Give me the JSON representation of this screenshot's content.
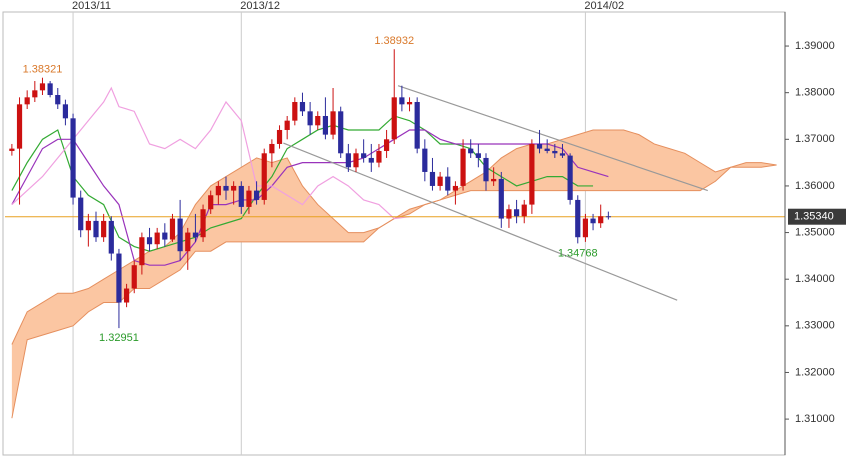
{
  "chart_data": {
    "type": "candlestick",
    "xlim": [
      -0.9,
      101.1
    ],
    "xticks": [
      {
        "value": 8,
        "label": "2013/11"
      },
      {
        "value": 30,
        "label": "2013/12"
      },
      {
        "value": 75,
        "label": "2014/02"
      }
    ],
    "ylim": [
      1.3023,
      1.3973
    ],
    "yticks": [
      {
        "value": 1.31,
        "label": "1.31000"
      },
      {
        "value": 1.32,
        "label": "1.32000"
      },
      {
        "value": 1.33,
        "label": "1.33000"
      },
      {
        "value": 1.34,
        "label": "1.34000"
      },
      {
        "value": 1.35,
        "label": "1.35000"
      },
      {
        "value": 1.36,
        "label": "1.36000"
      },
      {
        "value": 1.37,
        "label": "1.37000"
      },
      {
        "value": 1.38,
        "label": "1.38000"
      },
      {
        "value": 1.39,
        "label": "1.39000"
      }
    ],
    "grid": "x",
    "candles": {
      "up_color": "#cc1111",
      "down_color": "#2b2b9c",
      "x": [
        0,
        1,
        2,
        3,
        4,
        5,
        6,
        7,
        8,
        9,
        10,
        11,
        12,
        13,
        14,
        15,
        16,
        17,
        18,
        19,
        20,
        21,
        22,
        23,
        24,
        25,
        26,
        27,
        28,
        29,
        30,
        31,
        32,
        33,
        34,
        35,
        36,
        37,
        38,
        39,
        40,
        41,
        42,
        43,
        44,
        45,
        46,
        47,
        48,
        49,
        50,
        51,
        52,
        53,
        54,
        55,
        56,
        57,
        58,
        59,
        60,
        61,
        62,
        63,
        64,
        65,
        66,
        67,
        68,
        69,
        70,
        71,
        72,
        73,
        74,
        75,
        76,
        77,
        78
      ],
      "open": [
        1.3675,
        1.368,
        1.3775,
        1.379,
        1.3805,
        1.382,
        1.3795,
        1.3775,
        1.3745,
        1.3575,
        1.3505,
        1.3525,
        1.349,
        1.3525,
        1.3455,
        1.335,
        1.338,
        1.343,
        1.349,
        1.3475,
        1.35,
        1.3485,
        1.353,
        1.346,
        1.35,
        1.349,
        1.355,
        1.358,
        1.36,
        1.359,
        1.36,
        1.3555,
        1.359,
        1.357,
        1.367,
        1.369,
        1.372,
        1.374,
        1.378,
        1.376,
        1.373,
        1.375,
        1.371,
        1.376,
        1.367,
        1.364,
        1.367,
        1.366,
        1.365,
        1.3675,
        1.37,
        1.379,
        1.3775,
        1.378,
        1.368,
        1.363,
        1.36,
        1.362,
        1.359,
        1.36,
        1.368,
        1.367,
        1.366,
        1.361,
        1.3615,
        1.353,
        1.355,
        1.3535,
        1.356,
        1.369,
        1.368,
        1.3675,
        1.367,
        1.3665,
        1.357,
        1.349,
        1.353,
        1.352,
        1.3535
      ],
      "high": [
        1.369,
        1.379,
        1.3805,
        1.3825,
        1.38321,
        1.3825,
        1.381,
        1.3785,
        1.3755,
        1.359,
        1.354,
        1.3545,
        1.354,
        1.3535,
        1.3465,
        1.339,
        1.344,
        1.35,
        1.351,
        1.351,
        1.352,
        1.354,
        1.357,
        1.351,
        1.354,
        1.356,
        1.359,
        1.361,
        1.362,
        1.361,
        1.361,
        1.36,
        1.361,
        1.368,
        1.37,
        1.373,
        1.375,
        1.379,
        1.38,
        1.378,
        1.376,
        1.379,
        1.381,
        1.377,
        1.369,
        1.368,
        1.37,
        1.369,
        1.369,
        1.372,
        1.38932,
        1.3815,
        1.379,
        1.379,
        1.37,
        1.366,
        1.363,
        1.364,
        1.361,
        1.37,
        1.37,
        1.369,
        1.367,
        1.364,
        1.363,
        1.356,
        1.357,
        1.357,
        1.37,
        1.372,
        1.37,
        1.369,
        1.369,
        1.367,
        1.358,
        1.354,
        1.354,
        1.356,
        1.3545
      ],
      "low": [
        1.3665,
        1.356,
        1.3765,
        1.378,
        1.3795,
        1.379,
        1.3765,
        1.373,
        1.356,
        1.349,
        1.347,
        1.348,
        1.348,
        1.344,
        1.32951,
        1.334,
        1.337,
        1.341,
        1.346,
        1.3465,
        1.347,
        1.348,
        1.344,
        1.342,
        1.348,
        1.348,
        1.354,
        1.356,
        1.357,
        1.356,
        1.354,
        1.354,
        1.356,
        1.356,
        1.364,
        1.368,
        1.37,
        1.373,
        1.375,
        1.371,
        1.372,
        1.37,
        1.37,
        1.366,
        1.363,
        1.363,
        1.365,
        1.363,
        1.364,
        1.366,
        1.369,
        1.376,
        1.376,
        1.367,
        1.361,
        1.359,
        1.359,
        1.358,
        1.356,
        1.359,
        1.366,
        1.364,
        1.359,
        1.36,
        1.351,
        1.351,
        1.352,
        1.352,
        1.354,
        1.367,
        1.367,
        1.366,
        1.366,
        1.356,
        1.34768,
        1.348,
        1.3505,
        1.351,
        1.3528
      ],
      "close": [
        1.368,
        1.3775,
        1.379,
        1.3805,
        1.382,
        1.3795,
        1.3775,
        1.3745,
        1.3575,
        1.3505,
        1.3525,
        1.349,
        1.3525,
        1.3455,
        1.335,
        1.338,
        1.343,
        1.349,
        1.3475,
        1.35,
        1.3485,
        1.353,
        1.346,
        1.35,
        1.349,
        1.355,
        1.358,
        1.36,
        1.359,
        1.36,
        1.3555,
        1.359,
        1.357,
        1.367,
        1.369,
        1.372,
        1.374,
        1.378,
        1.376,
        1.373,
        1.375,
        1.371,
        1.376,
        1.367,
        1.364,
        1.367,
        1.366,
        1.365,
        1.3675,
        1.37,
        1.379,
        1.3775,
        1.378,
        1.368,
        1.363,
        1.36,
        1.362,
        1.359,
        1.36,
        1.368,
        1.367,
        1.366,
        1.361,
        1.3615,
        1.353,
        1.355,
        1.3535,
        1.356,
        1.369,
        1.368,
        1.3675,
        1.367,
        1.3665,
        1.357,
        1.349,
        1.353,
        1.352,
        1.3535,
        1.3534
      ]
    },
    "cloud": {
      "color": "#fbc6a2",
      "edge_color": "#e58f5e",
      "x": [
        0,
        2,
        4,
        6,
        8,
        10,
        12,
        14,
        16,
        18,
        20,
        22,
        24,
        26,
        28,
        30,
        32,
        34,
        36,
        38,
        40,
        42,
        44,
        46,
        48,
        50,
        52,
        54,
        56,
        58,
        60,
        62,
        64,
        66,
        68,
        70,
        72,
        74,
        76,
        78,
        80,
        82,
        84,
        86,
        88,
        90,
        92,
        94,
        96,
        98,
        100
      ],
      "span_a": [
        1.326,
        1.333,
        1.335,
        1.337,
        1.337,
        1.338,
        1.34,
        1.342,
        1.344,
        1.346,
        1.347,
        1.35,
        1.356,
        1.36,
        1.362,
        1.364,
        1.366,
        1.365,
        1.366,
        1.36,
        1.356,
        1.353,
        1.35,
        1.35,
        1.351,
        1.353,
        1.355,
        1.356,
        1.357,
        1.359,
        1.361,
        1.363,
        1.366,
        1.368,
        1.369,
        1.369,
        1.37,
        1.371,
        1.372,
        1.372,
        1.372,
        1.371,
        1.369,
        1.368,
        1.367,
        1.365,
        1.363,
        1.364,
        1.365,
        1.365,
        1.3645
      ],
      "span_b": [
        1.3102,
        1.327,
        1.328,
        1.329,
        1.33,
        1.333,
        1.335,
        1.335,
        1.338,
        1.338,
        1.34,
        1.342,
        1.346,
        1.346,
        1.348,
        1.348,
        1.348,
        1.348,
        1.348,
        1.348,
        1.348,
        1.348,
        1.348,
        1.348,
        1.351,
        1.353,
        1.354,
        1.356,
        1.357,
        1.358,
        1.359,
        1.359,
        1.359,
        1.359,
        1.359,
        1.359,
        1.359,
        1.359,
        1.359,
        1.359,
        1.359,
        1.359,
        1.359,
        1.359,
        1.359,
        1.359,
        1.361,
        1.364,
        1.364,
        1.364,
        1.3645
      ]
    },
    "lines": [
      {
        "color": "#33aa33",
        "x": [
          0,
          2,
          4,
          6,
          8,
          10,
          12,
          14,
          16,
          18,
          20,
          22,
          24,
          26,
          28,
          30,
          32,
          34,
          36,
          38,
          40,
          42,
          44,
          46,
          48,
          50,
          52,
          54,
          56,
          58,
          60,
          62,
          64,
          66,
          68,
          70,
          72,
          74,
          76
        ],
        "values": [
          1.359,
          1.365,
          1.37,
          1.372,
          1.362,
          1.358,
          1.356,
          1.349,
          1.347,
          1.346,
          1.347,
          1.348,
          1.349,
          1.351,
          1.352,
          1.353,
          1.358,
          1.362,
          1.368,
          1.37,
          1.372,
          1.373,
          1.372,
          1.372,
          1.372,
          1.375,
          1.374,
          1.372,
          1.369,
          1.369,
          1.368,
          1.364,
          1.362,
          1.36,
          1.361,
          1.362,
          1.362,
          1.36,
          1.36
        ]
      },
      {
        "color": "#9933bb",
        "x": [
          0,
          2,
          4,
          6,
          8,
          10,
          12,
          14,
          16,
          18,
          20,
          22,
          24,
          26,
          28,
          30,
          32,
          34,
          36,
          38,
          40,
          42,
          44,
          46,
          48,
          50,
          52,
          54,
          56,
          58,
          60,
          62,
          64,
          66,
          68,
          70,
          72,
          74,
          76,
          78
        ],
        "values": [
          1.356,
          1.362,
          1.368,
          1.37,
          1.37,
          1.365,
          1.36,
          1.356,
          1.344,
          1.343,
          1.343,
          1.344,
          1.348,
          1.356,
          1.356,
          1.357,
          1.357,
          1.36,
          1.364,
          1.365,
          1.365,
          1.365,
          1.365,
          1.366,
          1.368,
          1.37,
          1.372,
          1.372,
          1.37,
          1.369,
          1.369,
          1.369,
          1.369,
          1.369,
          1.369,
          1.369,
          1.368,
          1.364,
          1.363,
          1.362
        ]
      },
      {
        "color": "#f0a0e0",
        "x": [
          0,
          4,
          8,
          10,
          12,
          13,
          14,
          16,
          18,
          20,
          22,
          24,
          26,
          28,
          30,
          32,
          34,
          36,
          38,
          40,
          42,
          44,
          46,
          48,
          50,
          52
        ],
        "values": [
          1.356,
          1.362,
          1.37,
          1.374,
          1.378,
          1.381,
          1.377,
          1.376,
          1.369,
          1.368,
          1.37,
          1.368,
          1.372,
          1.378,
          1.374,
          1.36,
          1.36,
          1.358,
          1.356,
          1.36,
          1.362,
          1.36,
          1.357,
          1.356,
          1.353,
          1.3534
        ]
      }
    ],
    "trend_lines": [
      {
        "color": "#999999",
        "x": [
          50.5,
          91
        ],
        "values": [
          1.3815,
          1.359
        ]
      },
      {
        "color": "#999999",
        "x": [
          35.5,
          87
        ],
        "values": [
          1.3692,
          1.3355
        ]
      }
    ],
    "last_price": {
      "value": 1.3534,
      "label": "1.35340",
      "color": "#e8a020"
    },
    "annotations": [
      {
        "label": "1.38321",
        "value": 1.38321,
        "x": 4,
        "color": "#d9782a",
        "position": "above"
      },
      {
        "label": "1.38932",
        "value": 1.38932,
        "x": 50,
        "color": "#d9782a",
        "position": "above"
      },
      {
        "label": "1.32951",
        "value": 1.32951,
        "x": 14,
        "color": "#2a9a2a",
        "position": "below"
      },
      {
        "label": "1.34768",
        "value": 1.34768,
        "x": 74,
        "color": "#2a9a2a",
        "position": "below"
      }
    ]
  }
}
